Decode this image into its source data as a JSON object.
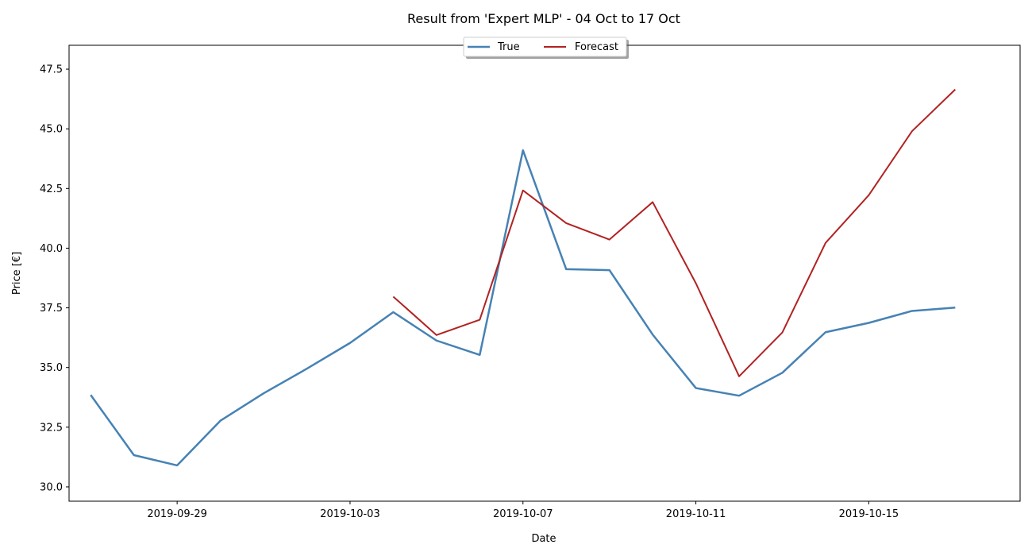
{
  "chart_data": {
    "type": "line",
    "title": "Result from 'Expert MLP' - 04 Oct to 17 Oct",
    "xlabel": "Date",
    "ylabel": "Price [€]",
    "ylim": [
      29.4,
      48.5
    ],
    "xlim": [
      "2019-09-26T12:00",
      "2019-10-18T12:00"
    ],
    "grid": false,
    "legend_position": "top-center",
    "x_ticks": [
      "2019-09-29",
      "2019-10-03",
      "2019-10-07",
      "2019-10-11",
      "2019-10-15"
    ],
    "y_ticks": [
      30.0,
      32.5,
      35.0,
      37.5,
      40.0,
      42.5,
      45.0,
      47.5
    ],
    "series": [
      {
        "name": "True",
        "color": "#4682b4",
        "points": [
          [
            "2019-09-27",
            33.85
          ],
          [
            "2019-09-28",
            31.33
          ],
          [
            "2019-09-29",
            30.9
          ],
          [
            "2019-09-30",
            32.77
          ],
          [
            "2019-10-01",
            33.92
          ],
          [
            "2019-10-02",
            34.95
          ],
          [
            "2019-10-03",
            36.03
          ],
          [
            "2019-10-04",
            37.32
          ],
          [
            "2019-10-05",
            36.13
          ],
          [
            "2019-10-06",
            35.53
          ],
          [
            "2019-10-07",
            44.1
          ],
          [
            "2019-10-08",
            39.12
          ],
          [
            "2019-10-09",
            39.08
          ],
          [
            "2019-10-10",
            36.38
          ],
          [
            "2019-10-11",
            34.14
          ],
          [
            "2019-10-12",
            33.82
          ],
          [
            "2019-10-13",
            34.78
          ],
          [
            "2019-10-14",
            36.48
          ],
          [
            "2019-10-15",
            36.87
          ],
          [
            "2019-10-16",
            37.37
          ],
          [
            "2019-10-17",
            37.51
          ]
        ]
      },
      {
        "name": "Forecast",
        "color": "#b22222",
        "points": [
          [
            "2019-10-04",
            37.97
          ],
          [
            "2019-10-05",
            36.36
          ],
          [
            "2019-10-06",
            37.0
          ],
          [
            "2019-10-07",
            42.42
          ],
          [
            "2019-10-08",
            41.05
          ],
          [
            "2019-10-09",
            40.36
          ],
          [
            "2019-10-10",
            41.93
          ],
          [
            "2019-10-11",
            38.53
          ],
          [
            "2019-10-12",
            34.63
          ],
          [
            "2019-10-13",
            36.47
          ],
          [
            "2019-10-14",
            40.22
          ],
          [
            "2019-10-15",
            42.22
          ],
          [
            "2019-10-16",
            44.9
          ],
          [
            "2019-10-17",
            46.65
          ]
        ]
      }
    ]
  }
}
